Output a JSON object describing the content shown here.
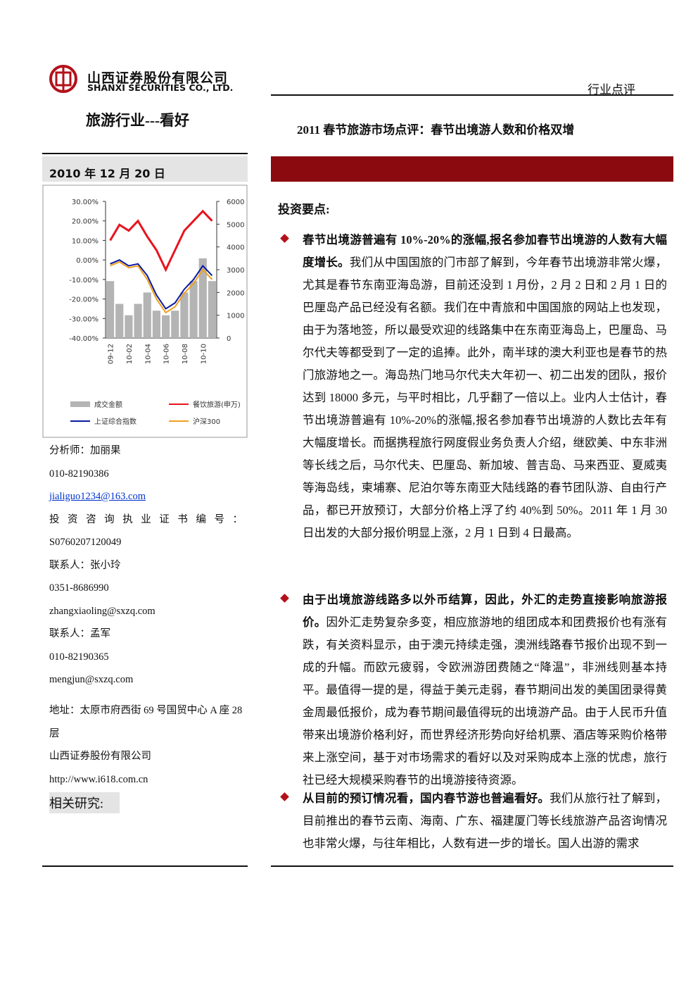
{
  "header": {
    "company_cn": "山西证券股份有限公司",
    "company_en": "SHANXI SECURITIES CO., LTD.",
    "report_type": "行业点评"
  },
  "sector": "旅游行业---看好",
  "title": "2011 春节旅游市场点评：春节出境游人数和价格双增",
  "date": "2010 年 12 月 20 日",
  "chart_data": {
    "type": "combo",
    "categories": [
      "09-12",
      null,
      "10-02",
      null,
      "10-04",
      null,
      "10-06",
      null,
      "10-08",
      null,
      "10-10",
      null
    ],
    "series": [
      {
        "name": "成交金额",
        "color": "#b4b4b4",
        "type": "bar",
        "axis": "y2",
        "values": [
          2500,
          1500,
          1000,
          1500,
          2000,
          1200,
          1000,
          1200,
          2000,
          2500,
          3500,
          2500
        ]
      },
      {
        "name": "餐饮旅游(申万)",
        "color": "#e8141e",
        "type": "line",
        "values": [
          10,
          18,
          15,
          20,
          12,
          5,
          -5,
          5,
          15,
          20,
          25,
          20
        ]
      },
      {
        "name": "上证综合指数",
        "color": "#0a1aa0",
        "type": "line",
        "values": [
          -2,
          0,
          -3,
          -2,
          -8,
          -18,
          -25,
          -22,
          -15,
          -10,
          -3,
          -8
        ]
      },
      {
        "name": "沪深300",
        "color": "#f0a020",
        "type": "line",
        "values": [
          -3,
          -1,
          -4,
          -3,
          -10,
          -20,
          -27,
          -24,
          -17,
          -12,
          -5,
          -10
        ]
      }
    ],
    "ylim": [
      -40,
      30
    ],
    "yticks": [
      {
        "value": 30,
        "label": "30.00%"
      },
      {
        "value": 20,
        "label": "20.00%"
      },
      {
        "value": 10,
        "label": "10.00%"
      },
      {
        "value": 0,
        "label": "0.00%"
      },
      {
        "value": -10,
        "label": "-10.00%"
      },
      {
        "value": -20,
        "label": "-20.00%"
      },
      {
        "value": -30,
        "label": "-30.00%"
      },
      {
        "value": -40,
        "label": "-40.00%"
      }
    ],
    "y2lim": [
      0,
      6000
    ],
    "y2ticks": [
      0,
      1000,
      2000,
      3000,
      4000,
      5000,
      6000
    ]
  },
  "contacts": [
    "分析师：加丽果",
    "010-82190386",
    "jialiguo1234@163.com",
    "投资咨询执业证书编号：",
    "S0760207120049",
    "联系人：张小玲",
    "0351-8686990",
    "zhangxiaoling@sxzq.com",
    "联系人：孟军",
    "010-82190365",
    "mengjun@sxzq.com"
  ],
  "address": [
    "地址：太原市府西街 69 号国贸中心 A 座 28 层",
    "山西证券股份有限公司",
    "http://www.i618.com.cn"
  ],
  "related": "相关研究:",
  "points_title": "投资要点:",
  "bullets": [
    {
      "lead": "春节出境游普遍有 10%-20%的涨幅,报名参加春节出境游的人数有大幅度增长。",
      "body": "我们从中国国旅的门市部了解到，今年春节出境游非常火爆，尤其是春节东南亚海岛游，目前还没到 1 月份，2 月 2 日和 2 月 1 日的巴厘岛产品已经没有名额。我们在中青旅和中国国旅的网站上也发现，由于为落地签，所以最受欢迎的线路集中在东南亚海岛上，巴厘岛、马尔代夫等都受到了一定的追捧。此外，南半球的澳大利亚也是春节的热门旅游地之一。海岛热门地马尔代夫大年初一、初二出发的团队，报价达到 18000 多元，与平时相比，几乎翻了一倍以上。业内人士估计，春节出境游普遍有 10%-20%的涨幅,报名参加春节出境游的人数比去年有大幅度增长。而据携程旅行网度假业务负责人介绍，继欧美、中东非洲等长线之后，马尔代夫、巴厘岛、新加坡、普吉岛、马来西亚、夏威夷等海岛线，柬埔寨、尼泊尔等东南亚大陆线路的春节团队游、自由行产品，都已开放预订，大部分价格上浮了约 40%到 50%。2011 年 1 月 30 日出发的大部分报价明显上涨，2 月 1 日到 4 日最高。"
    },
    {
      "lead": "由于出境旅游线路多以外币结算，因此，外汇的走势直接影响旅游报价。",
      "body": "因外汇走势复杂多变，相应旅游地的组团成本和团费报价也有涨有跌，有关资料显示，由于澳元持续走强，澳洲线路春节报价出现不到一成的升幅。而欧元疲弱，令欧洲游团费随之“降温”，非洲线则基本持平。最值得一提的是，得益于美元走弱，春节期间出发的美国团录得黄金周最低报价，成为春节期间最值得玩的出境游产品。由于人民币升值带来出境游价格利好，而世界经济形势向好给机票、酒店等采购价格带来上涨空间，基于对市场需求的看好以及对采购成本上涨的忧虑，旅行社已经大规模采购春节的出境游接待资源。"
    },
    {
      "lead": "从目前的预订情况看，国内春节游也普遍看好。",
      "body": "我们从旅行社了解到，目前推出的春节云南、海南、广东、福建厦门等长线旅游产品咨询情况也非常火爆，与往年相比，人数有进一步的增长。国人出游的需求"
    }
  ]
}
